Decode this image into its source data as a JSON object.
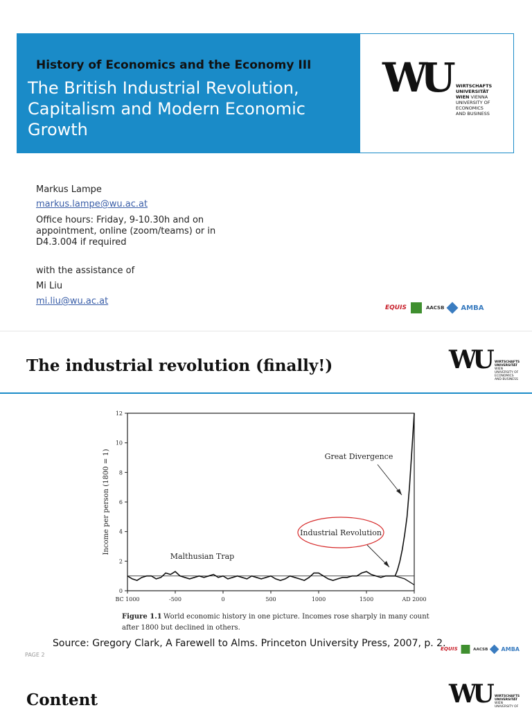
{
  "slide1": {
    "course": "History of Economics and the Economy III",
    "title": "The British Industrial Revolution, Capitalism and Modern Economic Growth",
    "logo": {
      "mark": "WU",
      "line1": "WIRTSCHAFTS",
      "line2": "UNIVERSITÄT",
      "line3a": "WIEN",
      "line3b": "VIENNA",
      "line4": "UNIVERSITY OF",
      "line5": "ECONOMICS",
      "line6": "AND BUSINESS"
    },
    "author": "Markus Lampe",
    "author_email": "markus.lampe@wu.ac.at",
    "office_hours_1": "Office hours: Friday, 9-10.30h and on",
    "office_hours_2": "appointment, online (zoom/teams) or in",
    "office_hours_3": "D4.3.004 if required",
    "assist_label": "with the assistance of",
    "assistant": "Mi Liu",
    "assistant_email": "mi.liu@wu.ac.at",
    "accreditations": {
      "equis": "EQUIS",
      "aacsb": "AACSB",
      "amba": "AMBA"
    }
  },
  "slide2": {
    "title": "The industrial revolution (finally!)",
    "source": "Source: Gregory Clark, A Farewell to Alms. Princeton University Press, 2007, p. 2.",
    "page": "PAGE 2"
  },
  "slide3": {
    "title": "Content"
  },
  "chart_data": {
    "type": "line",
    "ylabel": "Income per person (1800 = 1)",
    "ylim": [
      0,
      12
    ],
    "yticks": [
      0,
      2,
      4,
      6,
      8,
      10,
      12
    ],
    "xlim": [
      -1000,
      2000
    ],
    "xticks": [
      {
        "value": -1000,
        "label": "BC 1000"
      },
      {
        "value": -500,
        "label": "-500"
      },
      {
        "value": 0,
        "label": "0"
      },
      {
        "value": 500,
        "label": "500"
      },
      {
        "value": 1000,
        "label": "1000"
      },
      {
        "value": 1500,
        "label": "1500"
      },
      {
        "value": 2000,
        "label": "AD 2000"
      }
    ],
    "reference_line": 1,
    "annotations": {
      "great_divergence": "Great Divergence",
      "industrial_revolution": "Industrial Revolution",
      "malthusian_trap": "Malthusian Trap"
    },
    "caption_label": "Figure 1.1",
    "caption_1": "World economic history in one picture. Incomes rose sharply in many countries",
    "caption_2": "after 1800 but declined in others.",
    "series": [
      {
        "x": [
          -1000,
          -950,
          -900,
          -850,
          -800,
          -750,
          -700,
          -650,
          -600,
          -550,
          -500,
          -450,
          -400,
          -350,
          -300,
          -250,
          -200,
          -150,
          -100,
          -50,
          0,
          50,
          100,
          150,
          200,
          250,
          300,
          350,
          400,
          450,
          500,
          550,
          600,
          650,
          700,
          750,
          800,
          850,
          900,
          950,
          1000,
          1050,
          1100,
          1150,
          1200,
          1250,
          1300,
          1350,
          1400,
          1450,
          1500,
          1550,
          1600,
          1650,
          1700,
          1750,
          1800,
          1825,
          1850,
          1875,
          1900,
          1925,
          1950,
          1975,
          2000
        ],
        "y": [
          1.0,
          0.8,
          0.7,
          0.9,
          1.0,
          1.0,
          0.8,
          0.9,
          1.2,
          1.1,
          1.3,
          1.0,
          0.9,
          0.8,
          0.9,
          1.0,
          0.9,
          1.0,
          1.1,
          0.9,
          1.0,
          0.8,
          0.9,
          1.0,
          0.9,
          0.8,
          1.0,
          0.9,
          0.8,
          0.9,
          1.0,
          0.8,
          0.7,
          0.8,
          1.0,
          0.9,
          0.8,
          0.7,
          0.9,
          1.2,
          1.2,
          1.0,
          0.8,
          0.7,
          0.8,
          0.9,
          0.9,
          1.0,
          1.0,
          1.2,
          1.3,
          1.1,
          1.0,
          0.9,
          1.0,
          1.0,
          1.0,
          1.4,
          2.0,
          2.8,
          3.8,
          5.0,
          7.0,
          9.5,
          12.0
        ]
      },
      {
        "x": [
          1800,
          1850,
          1900,
          1950,
          2000
        ],
        "y": [
          1.0,
          0.9,
          0.8,
          0.6,
          0.4
        ]
      }
    ]
  }
}
